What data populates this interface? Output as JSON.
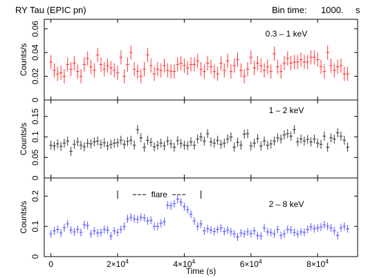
{
  "header": {
    "title": "RY Tau (EPIC pn)",
    "bin_time_label": "Bin time:",
    "bin_time_value": "1000.",
    "bin_time_unit": "s"
  },
  "chart_data": {
    "type": "scatter",
    "xlabel": "Time (s)",
    "xlim": [
      -2000,
      92000
    ],
    "x_ticks": [
      0,
      20000,
      40000,
      60000,
      80000
    ],
    "x_tick_labels": [
      {
        "base": "0",
        "exp": ""
      },
      {
        "base": "2×10",
        "exp": "4"
      },
      {
        "base": "4×10",
        "exp": "4"
      },
      {
        "base": "6×10",
        "exp": "4"
      },
      {
        "base": "8×10",
        "exp": "4"
      }
    ],
    "panels": [
      {
        "band": "0.3 – 1 keV",
        "ylabel": "Counts/s",
        "ylim": [
          0,
          0.068
        ],
        "y_ticks": [
          0,
          0.02,
          0.04,
          0.06
        ],
        "y_tick_labels": [
          "0",
          "0.02",
          "0.04",
          "0.06"
        ],
        "color": "#ff3030",
        "error": 0.006,
        "x": [
          0,
          1000,
          2000,
          3000,
          4000,
          5000,
          6000,
          7000,
          8000,
          9000,
          10000,
          11000,
          12000,
          13000,
          14000,
          15000,
          16000,
          17000,
          18000,
          19000,
          20000,
          21000,
          22000,
          23000,
          24000,
          25000,
          26000,
          27000,
          28000,
          29000,
          30000,
          31000,
          32000,
          33000,
          34000,
          35000,
          36000,
          37000,
          38000,
          39000,
          40000,
          41000,
          42000,
          43000,
          44000,
          45000,
          46000,
          47000,
          48000,
          49000,
          50000,
          51000,
          52000,
          53000,
          54000,
          55000,
          56000,
          57000,
          58000,
          59000,
          60000,
          61000,
          62000,
          63000,
          64000,
          65000,
          66000,
          67000,
          68000,
          69000,
          70000,
          71000,
          72000,
          73000,
          74000,
          75000,
          76000,
          77000,
          78000,
          79000,
          80000,
          81000,
          82000,
          83000,
          84000,
          85000,
          86000,
          87000,
          88000,
          89000
        ],
        "values": [
          0.032,
          0.025,
          0.022,
          0.023,
          0.02,
          0.03,
          0.026,
          0.031,
          0.024,
          0.02,
          0.03,
          0.035,
          0.028,
          0.025,
          0.038,
          0.03,
          0.026,
          0.029,
          0.027,
          0.025,
          0.023,
          0.036,
          0.02,
          0.03,
          0.04,
          0.026,
          0.024,
          0.02,
          0.026,
          0.038,
          0.029,
          0.022,
          0.026,
          0.025,
          0.029,
          0.025,
          0.024,
          0.024,
          0.03,
          0.031,
          0.029,
          0.027,
          0.03,
          0.03,
          0.033,
          0.026,
          0.024,
          0.031,
          0.028,
          0.024,
          0.022,
          0.031,
          0.025,
          0.033,
          0.024,
          0.029,
          0.034,
          0.025,
          0.02,
          0.026,
          0.036,
          0.027,
          0.031,
          0.029,
          0.025,
          0.028,
          0.024,
          0.039,
          0.028,
          0.024,
          0.031,
          0.035,
          0.031,
          0.032,
          0.032,
          0.034,
          0.032,
          0.032,
          0.036,
          0.036,
          0.034,
          0.028,
          0.024,
          0.04,
          0.029,
          0.025,
          0.028,
          0.029,
          0.022,
          0.022
        ]
      },
      {
        "band": "1 – 2 keV",
        "ylabel": "Counts/s",
        "ylim": [
          0,
          0.19
        ],
        "y_ticks": [
          0,
          0.05,
          0.1,
          0.15
        ],
        "y_tick_labels": [
          "0",
          "0.05",
          "0.1",
          "0.15"
        ],
        "color": "#303030",
        "error": 0.011,
        "x": [
          0,
          1000,
          2000,
          3000,
          4000,
          5000,
          6000,
          7000,
          8000,
          9000,
          10000,
          11000,
          12000,
          13000,
          14000,
          15000,
          16000,
          17000,
          18000,
          19000,
          20000,
          21000,
          22000,
          23000,
          24000,
          25000,
          26000,
          27000,
          28000,
          29000,
          30000,
          31000,
          32000,
          33000,
          34000,
          35000,
          36000,
          37000,
          38000,
          39000,
          40000,
          41000,
          42000,
          43000,
          44000,
          45000,
          46000,
          47000,
          48000,
          49000,
          50000,
          51000,
          52000,
          53000,
          54000,
          55000,
          56000,
          57000,
          58000,
          59000,
          60000,
          61000,
          62000,
          63000,
          64000,
          65000,
          66000,
          67000,
          68000,
          69000,
          70000,
          71000,
          72000,
          73000,
          74000,
          75000,
          76000,
          77000,
          78000,
          79000,
          80000,
          81000,
          82000,
          83000,
          84000,
          85000,
          86000,
          87000,
          88000,
          89000
        ],
        "values": [
          0.08,
          0.078,
          0.083,
          0.077,
          0.085,
          0.09,
          0.065,
          0.082,
          0.088,
          0.08,
          0.076,
          0.085,
          0.083,
          0.088,
          0.09,
          0.082,
          0.086,
          0.078,
          0.082,
          0.085,
          0.086,
          0.092,
          0.082,
          0.089,
          0.092,
          0.08,
          0.118,
          0.098,
          0.075,
          0.092,
          0.087,
          0.076,
          0.08,
          0.085,
          0.078,
          0.09,
          0.083,
          0.075,
          0.091,
          0.084,
          0.08,
          0.079,
          0.088,
          0.08,
          0.095,
          0.1,
          0.09,
          0.108,
          0.088,
          0.085,
          0.092,
          0.082,
          0.085,
          0.095,
          0.1,
          0.075,
          0.087,
          0.08,
          0.107,
          0.108,
          0.078,
          0.085,
          0.096,
          0.078,
          0.09,
          0.08,
          0.083,
          0.09,
          0.098,
          0.095,
          0.105,
          0.108,
          0.102,
          0.118,
          0.088,
          0.095,
          0.09,
          0.094,
          0.088,
          0.095,
          0.085,
          0.082,
          0.102,
          0.075,
          0.098,
          0.095,
          0.11,
          0.102,
          0.092,
          0.075
        ]
      },
      {
        "band": "2 – 8 keV",
        "ylabel": "Counts/s",
        "ylim": [
          0,
          0.26
        ],
        "y_ticks": [
          0,
          0.1,
          0.2
        ],
        "y_tick_labels": [
          "0",
          "0.1",
          "0.2"
        ],
        "color": "#5050ff",
        "error": 0.013,
        "annotation": {
          "text": "flare",
          "x_start": 20000,
          "x_end": 45000,
          "y": 0.205
        },
        "x": [
          0,
          1000,
          2000,
          3000,
          4000,
          5000,
          6000,
          7000,
          8000,
          9000,
          10000,
          11000,
          12000,
          13000,
          14000,
          15000,
          16000,
          17000,
          18000,
          19000,
          20000,
          21000,
          22000,
          23000,
          24000,
          25000,
          26000,
          27000,
          28000,
          29000,
          30000,
          31000,
          32000,
          33000,
          34000,
          35000,
          36000,
          37000,
          38000,
          39000,
          40000,
          41000,
          42000,
          43000,
          44000,
          45000,
          46000,
          47000,
          48000,
          49000,
          50000,
          51000,
          52000,
          53000,
          54000,
          55000,
          56000,
          57000,
          58000,
          59000,
          60000,
          61000,
          62000,
          63000,
          64000,
          65000,
          66000,
          67000,
          68000,
          69000,
          70000,
          71000,
          72000,
          73000,
          74000,
          75000,
          76000,
          77000,
          78000,
          79000,
          80000,
          81000,
          82000,
          83000,
          84000,
          85000,
          86000,
          87000,
          88000,
          89000
        ],
        "values": [
          0.075,
          0.085,
          0.09,
          0.078,
          0.095,
          0.108,
          0.088,
          0.082,
          0.09,
          0.08,
          0.105,
          0.103,
          0.075,
          0.085,
          0.078,
          0.08,
          0.09,
          0.088,
          0.068,
          0.085,
          0.08,
          0.09,
          0.1,
          0.125,
          0.13,
          0.125,
          0.123,
          0.13,
          0.128,
          0.118,
          0.12,
          0.1,
          0.1,
          0.11,
          0.115,
          0.17,
          0.168,
          0.175,
          0.19,
          0.18,
          0.165,
          0.155,
          0.14,
          0.118,
          0.1,
          0.108,
          0.085,
          0.092,
          0.088,
          0.083,
          0.09,
          0.095,
          0.083,
          0.088,
          0.082,
          0.075,
          0.065,
          0.078,
          0.075,
          0.082,
          0.076,
          0.085,
          0.07,
          0.068,
          0.095,
          0.082,
          0.08,
          0.075,
          0.09,
          0.07,
          0.075,
          0.09,
          0.088,
          0.08,
          0.075,
          0.082,
          0.08,
          0.09,
          0.098,
          0.092,
          0.095,
          0.098,
          0.105,
          0.1,
          0.095,
          0.085,
          0.07,
          0.095,
          0.1,
          0.092
        ]
      }
    ]
  }
}
